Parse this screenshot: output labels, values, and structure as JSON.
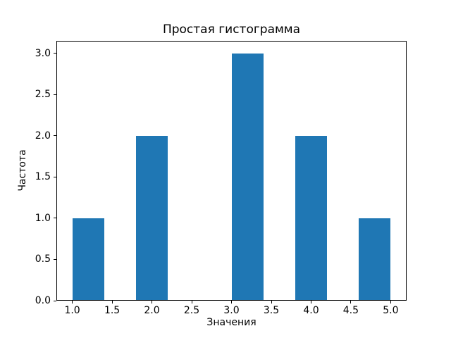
{
  "chart_data": {
    "type": "bar",
    "chart_kind": "histogram",
    "title": "Простая гистограмма",
    "xlabel": "Значения",
    "ylabel": "Частота",
    "bin_edges": [
      1.0,
      1.4,
      1.8,
      2.2,
      2.6,
      3.0,
      3.4,
      3.8,
      4.2,
      4.6,
      5.0
    ],
    "counts": [
      1,
      0,
      2,
      0,
      0,
      3,
      0,
      2,
      0,
      1
    ],
    "bars": [
      {
        "from": 1.0,
        "to": 1.4,
        "frequency": 1
      },
      {
        "from": 1.8,
        "to": 2.2,
        "frequency": 2
      },
      {
        "from": 3.0,
        "to": 3.4,
        "frequency": 3
      },
      {
        "from": 3.8,
        "to": 4.2,
        "frequency": 2
      },
      {
        "from": 4.6,
        "to": 5.0,
        "frequency": 1
      }
    ],
    "xticks": [
      1.0,
      1.5,
      2.0,
      2.5,
      3.0,
      3.5,
      4.0,
      4.5,
      5.0
    ],
    "xtick_labels": [
      "1.0",
      "1.5",
      "2.0",
      "2.5",
      "3.0",
      "3.5",
      "4.0",
      "4.5",
      "5.0"
    ],
    "yticks": [
      0.0,
      0.5,
      1.0,
      1.5,
      2.0,
      2.5,
      3.0
    ],
    "ytick_labels": [
      "0.0",
      "0.5",
      "1.0",
      "1.5",
      "2.0",
      "2.5",
      "3.0"
    ],
    "xlim": [
      0.8,
      5.2
    ],
    "ylim": [
      0,
      3.15
    ],
    "bar_color": "#1f77b4",
    "axes_color": "#000000",
    "background_color": "#ffffff",
    "grid": false,
    "legend_position": "none"
  }
}
